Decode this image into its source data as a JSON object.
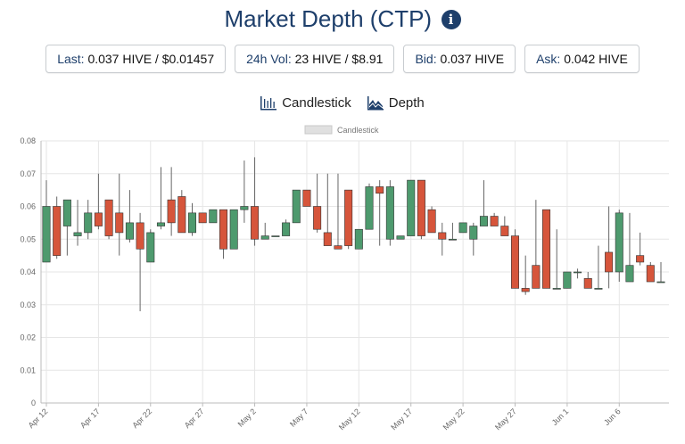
{
  "header": {
    "title": "Market Depth (CTP)",
    "info_icon": "info-circle-icon"
  },
  "stats": [
    {
      "label": "Last:",
      "value": "0.037 HIVE / $0.01457"
    },
    {
      "label": "24h Vol:",
      "value": "23 HIVE / $8.91"
    },
    {
      "label": "Bid:",
      "value": "0.037 HIVE"
    },
    {
      "label": "Ask:",
      "value": "0.042 HIVE"
    }
  ],
  "tabs": [
    {
      "label": "Candlestick",
      "icon": "candlestick-chart-icon",
      "active": true
    },
    {
      "label": "Depth",
      "icon": "depth-chart-icon",
      "active": false
    }
  ],
  "colors": {
    "up": "#4e9a6e",
    "down": "#d6553b",
    "grid": "#e6e6e6",
    "title": "#1e3f6b"
  },
  "chart_data": {
    "type": "candlestick",
    "legend": "Candlestick",
    "ylim": [
      0,
      0.08
    ],
    "yticks": [
      "0",
      "0.01",
      "0.02",
      "0.03",
      "0.04",
      "0.05",
      "0.06",
      "0.07",
      "0.08"
    ],
    "xticks": [
      {
        "label": "Apr 12",
        "day": 0
      },
      {
        "label": "Apr 17",
        "day": 5
      },
      {
        "label": "Apr 22",
        "day": 10
      },
      {
        "label": "Apr 27",
        "day": 15
      },
      {
        "label": "May 2",
        "day": 20
      },
      {
        "label": "May 7",
        "day": 25
      },
      {
        "label": "May 12",
        "day": 30
      },
      {
        "label": "May 17",
        "day": 35
      },
      {
        "label": "May 22",
        "day": 40
      },
      {
        "label": "May 27",
        "day": 45
      },
      {
        "label": "Jun 1",
        "day": 50
      },
      {
        "label": "Jun 6",
        "day": 55
      }
    ],
    "candles": [
      {
        "date": "Apr 12",
        "o": 0.043,
        "h": 0.068,
        "l": 0.043,
        "c": 0.06
      },
      {
        "date": "Apr 13",
        "o": 0.06,
        "h": 0.063,
        "l": 0.044,
        "c": 0.045
      },
      {
        "date": "Apr 14",
        "o": 0.054,
        "h": 0.062,
        "l": 0.045,
        "c": 0.062
      },
      {
        "date": "Apr 15",
        "o": 0.051,
        "h": 0.062,
        "l": 0.048,
        "c": 0.052
      },
      {
        "date": "Apr 16",
        "o": 0.052,
        "h": 0.062,
        "l": 0.05,
        "c": 0.058
      },
      {
        "date": "Apr 17",
        "o": 0.058,
        "h": 0.07,
        "l": 0.053,
        "c": 0.054
      },
      {
        "date": "Apr 18",
        "o": 0.062,
        "h": 0.062,
        "l": 0.05,
        "c": 0.051
      },
      {
        "date": "Apr 19",
        "o": 0.058,
        "h": 0.07,
        "l": 0.045,
        "c": 0.052
      },
      {
        "date": "Apr 20",
        "o": 0.05,
        "h": 0.065,
        "l": 0.049,
        "c": 0.055
      },
      {
        "date": "Apr 21",
        "o": 0.055,
        "h": 0.058,
        "l": 0.028,
        "c": 0.047
      },
      {
        "date": "Apr 22",
        "o": 0.043,
        "h": 0.053,
        "l": 0.043,
        "c": 0.052
      },
      {
        "date": "Apr 23",
        "o": 0.054,
        "h": 0.072,
        "l": 0.053,
        "c": 0.055
      },
      {
        "date": "Apr 24",
        "o": 0.062,
        "h": 0.072,
        "l": 0.051,
        "c": 0.055
      },
      {
        "date": "Apr 25",
        "o": 0.063,
        "h": 0.065,
        "l": 0.052,
        "c": 0.052
      },
      {
        "date": "Apr 26",
        "o": 0.052,
        "h": 0.061,
        "l": 0.051,
        "c": 0.058
      },
      {
        "date": "Apr 27",
        "o": 0.058,
        "h": 0.058,
        "l": 0.055,
        "c": 0.055
      },
      {
        "date": "Apr 28",
        "o": 0.055,
        "h": 0.059,
        "l": 0.055,
        "c": 0.059
      },
      {
        "date": "Apr 29",
        "o": 0.059,
        "h": 0.059,
        "l": 0.044,
        "c": 0.047
      },
      {
        "date": "Apr 30",
        "o": 0.047,
        "h": 0.059,
        "l": 0.047,
        "c": 0.059
      },
      {
        "date": "May 1",
        "o": 0.059,
        "h": 0.074,
        "l": 0.055,
        "c": 0.06
      },
      {
        "date": "May 2",
        "o": 0.06,
        "h": 0.075,
        "l": 0.048,
        "c": 0.05
      },
      {
        "date": "May 3",
        "o": 0.05,
        "h": 0.055,
        "l": 0.05,
        "c": 0.051
      },
      {
        "date": "May 4",
        "o": 0.051,
        "h": 0.051,
        "l": 0.051,
        "c": 0.051
      },
      {
        "date": "May 5",
        "o": 0.051,
        "h": 0.056,
        "l": 0.051,
        "c": 0.055
      },
      {
        "date": "May 6",
        "o": 0.055,
        "h": 0.065,
        "l": 0.055,
        "c": 0.065
      },
      {
        "date": "May 7",
        "o": 0.065,
        "h": 0.065,
        "l": 0.06,
        "c": 0.06
      },
      {
        "date": "May 8",
        "o": 0.06,
        "h": 0.07,
        "l": 0.052,
        "c": 0.053
      },
      {
        "date": "May 9",
        "o": 0.052,
        "h": 0.07,
        "l": 0.048,
        "c": 0.048
      },
      {
        "date": "May 10",
        "o": 0.048,
        "h": 0.07,
        "l": 0.047,
        "c": 0.047
      },
      {
        "date": "May 11",
        "o": 0.065,
        "h": 0.065,
        "l": 0.047,
        "c": 0.048
      },
      {
        "date": "May 12",
        "o": 0.047,
        "h": 0.053,
        "l": 0.047,
        "c": 0.053
      },
      {
        "date": "May 13",
        "o": 0.053,
        "h": 0.067,
        "l": 0.053,
        "c": 0.066
      },
      {
        "date": "May 14",
        "o": 0.066,
        "h": 0.068,
        "l": 0.048,
        "c": 0.064
      },
      {
        "date": "May 15",
        "o": 0.05,
        "h": 0.068,
        "l": 0.048,
        "c": 0.066
      },
      {
        "date": "May 16",
        "o": 0.05,
        "h": 0.051,
        "l": 0.05,
        "c": 0.051
      },
      {
        "date": "May 17",
        "o": 0.051,
        "h": 0.068,
        "l": 0.051,
        "c": 0.068
      },
      {
        "date": "May 18",
        "o": 0.068,
        "h": 0.068,
        "l": 0.05,
        "c": 0.051
      },
      {
        "date": "May 19",
        "o": 0.059,
        "h": 0.06,
        "l": 0.052,
        "c": 0.052
      },
      {
        "date": "May 20",
        "o": 0.052,
        "h": 0.055,
        "l": 0.045,
        "c": 0.05
      },
      {
        "date": "May 21",
        "o": 0.05,
        "h": 0.055,
        "l": 0.05,
        "c": 0.05
      },
      {
        "date": "May 22",
        "o": 0.052,
        "h": 0.055,
        "l": 0.052,
        "c": 0.055
      },
      {
        "date": "May 23",
        "o": 0.05,
        "h": 0.055,
        "l": 0.045,
        "c": 0.054
      },
      {
        "date": "May 24",
        "o": 0.054,
        "h": 0.068,
        "l": 0.054,
        "c": 0.057
      },
      {
        "date": "May 25",
        "o": 0.057,
        "h": 0.058,
        "l": 0.054,
        "c": 0.054
      },
      {
        "date": "May 26",
        "o": 0.054,
        "h": 0.057,
        "l": 0.051,
        "c": 0.051
      },
      {
        "date": "May 27",
        "o": 0.051,
        "h": 0.053,
        "l": 0.035,
        "c": 0.035
      },
      {
        "date": "May 28",
        "o": 0.035,
        "h": 0.045,
        "l": 0.033,
        "c": 0.034
      },
      {
        "date": "May 29",
        "o": 0.042,
        "h": 0.062,
        "l": 0.035,
        "c": 0.035
      },
      {
        "date": "May 30",
        "o": 0.059,
        "h": 0.059,
        "l": 0.035,
        "c": 0.035
      },
      {
        "date": "May 31",
        "o": 0.035,
        "h": 0.053,
        "l": 0.035,
        "c": 0.035
      },
      {
        "date": "Jun 1",
        "o": 0.035,
        "h": 0.04,
        "l": 0.035,
        "c": 0.04
      },
      {
        "date": "Jun 2",
        "o": 0.04,
        "h": 0.041,
        "l": 0.038,
        "c": 0.04
      },
      {
        "date": "Jun 3",
        "o": 0.038,
        "h": 0.04,
        "l": 0.035,
        "c": 0.035
      },
      {
        "date": "Jun 4",
        "o": 0.035,
        "h": 0.048,
        "l": 0.035,
        "c": 0.035
      },
      {
        "date": "Jun 5",
        "o": 0.046,
        "h": 0.06,
        "l": 0.035,
        "c": 0.04
      },
      {
        "date": "Jun 6",
        "o": 0.04,
        "h": 0.059,
        "l": 0.037,
        "c": 0.058
      },
      {
        "date": "Jun 7",
        "o": 0.037,
        "h": 0.058,
        "l": 0.037,
        "c": 0.042
      },
      {
        "date": "Jun 8",
        "o": 0.045,
        "h": 0.052,
        "l": 0.042,
        "c": 0.043
      },
      {
        "date": "Jun 9",
        "o": 0.042,
        "h": 0.043,
        "l": 0.037,
        "c": 0.037
      },
      {
        "date": "Jun 10",
        "o": 0.037,
        "h": 0.043,
        "l": 0.037,
        "c": 0.037
      }
    ]
  }
}
